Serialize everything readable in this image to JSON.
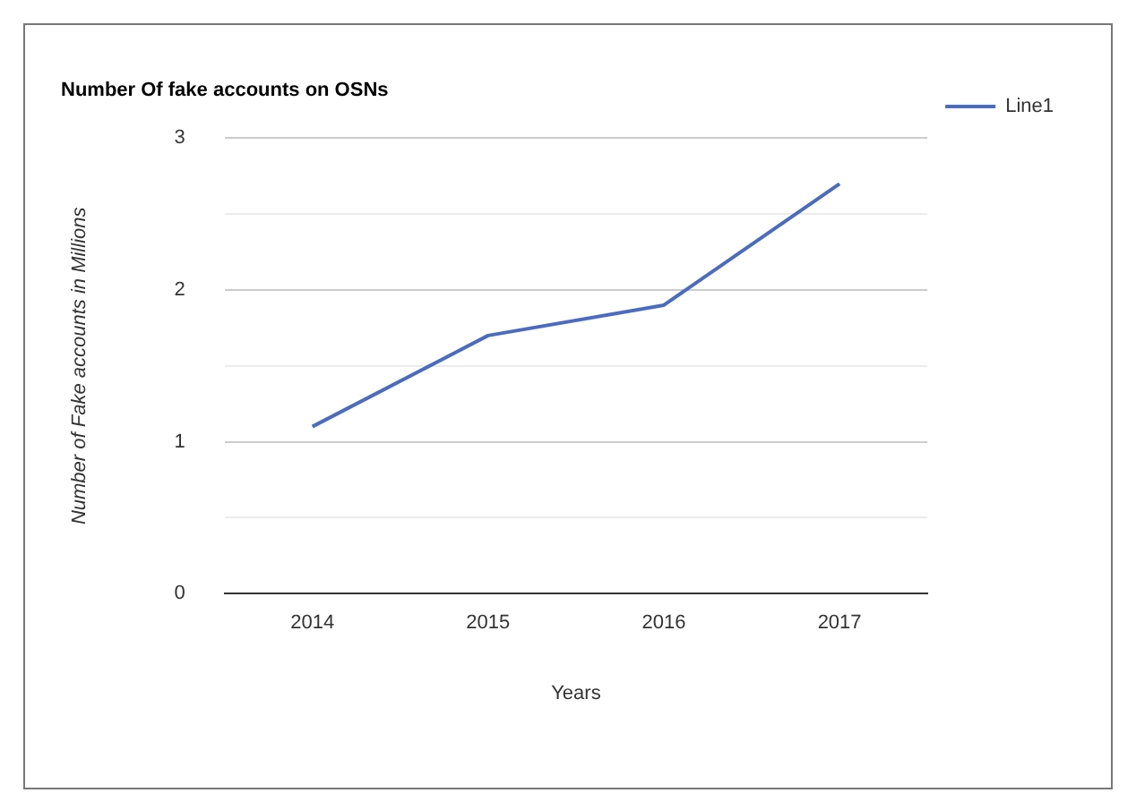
{
  "chart_data": {
    "type": "line",
    "title": "Number Of fake accounts on OSNs",
    "xlabel": "Years",
    "ylabel": "Number of Fake accounts in Millions",
    "categories": [
      "2014",
      "2015",
      "2016",
      "2017"
    ],
    "series": [
      {
        "name": "Line1",
        "color": "#4a6cc0",
        "values": [
          1.1,
          1.7,
          1.9,
          2.7
        ]
      }
    ],
    "ylim": [
      0,
      3
    ],
    "yticks": [
      0,
      {
        "value": 0.5,
        "label": null
      },
      1,
      {
        "value": 1.5,
        "label": null
      },
      2,
      {
        "value": 2.5,
        "label": null
      },
      3
    ],
    "grid": "y",
    "legend": "top right",
    "marker": "none",
    "line_style": "solid"
  }
}
